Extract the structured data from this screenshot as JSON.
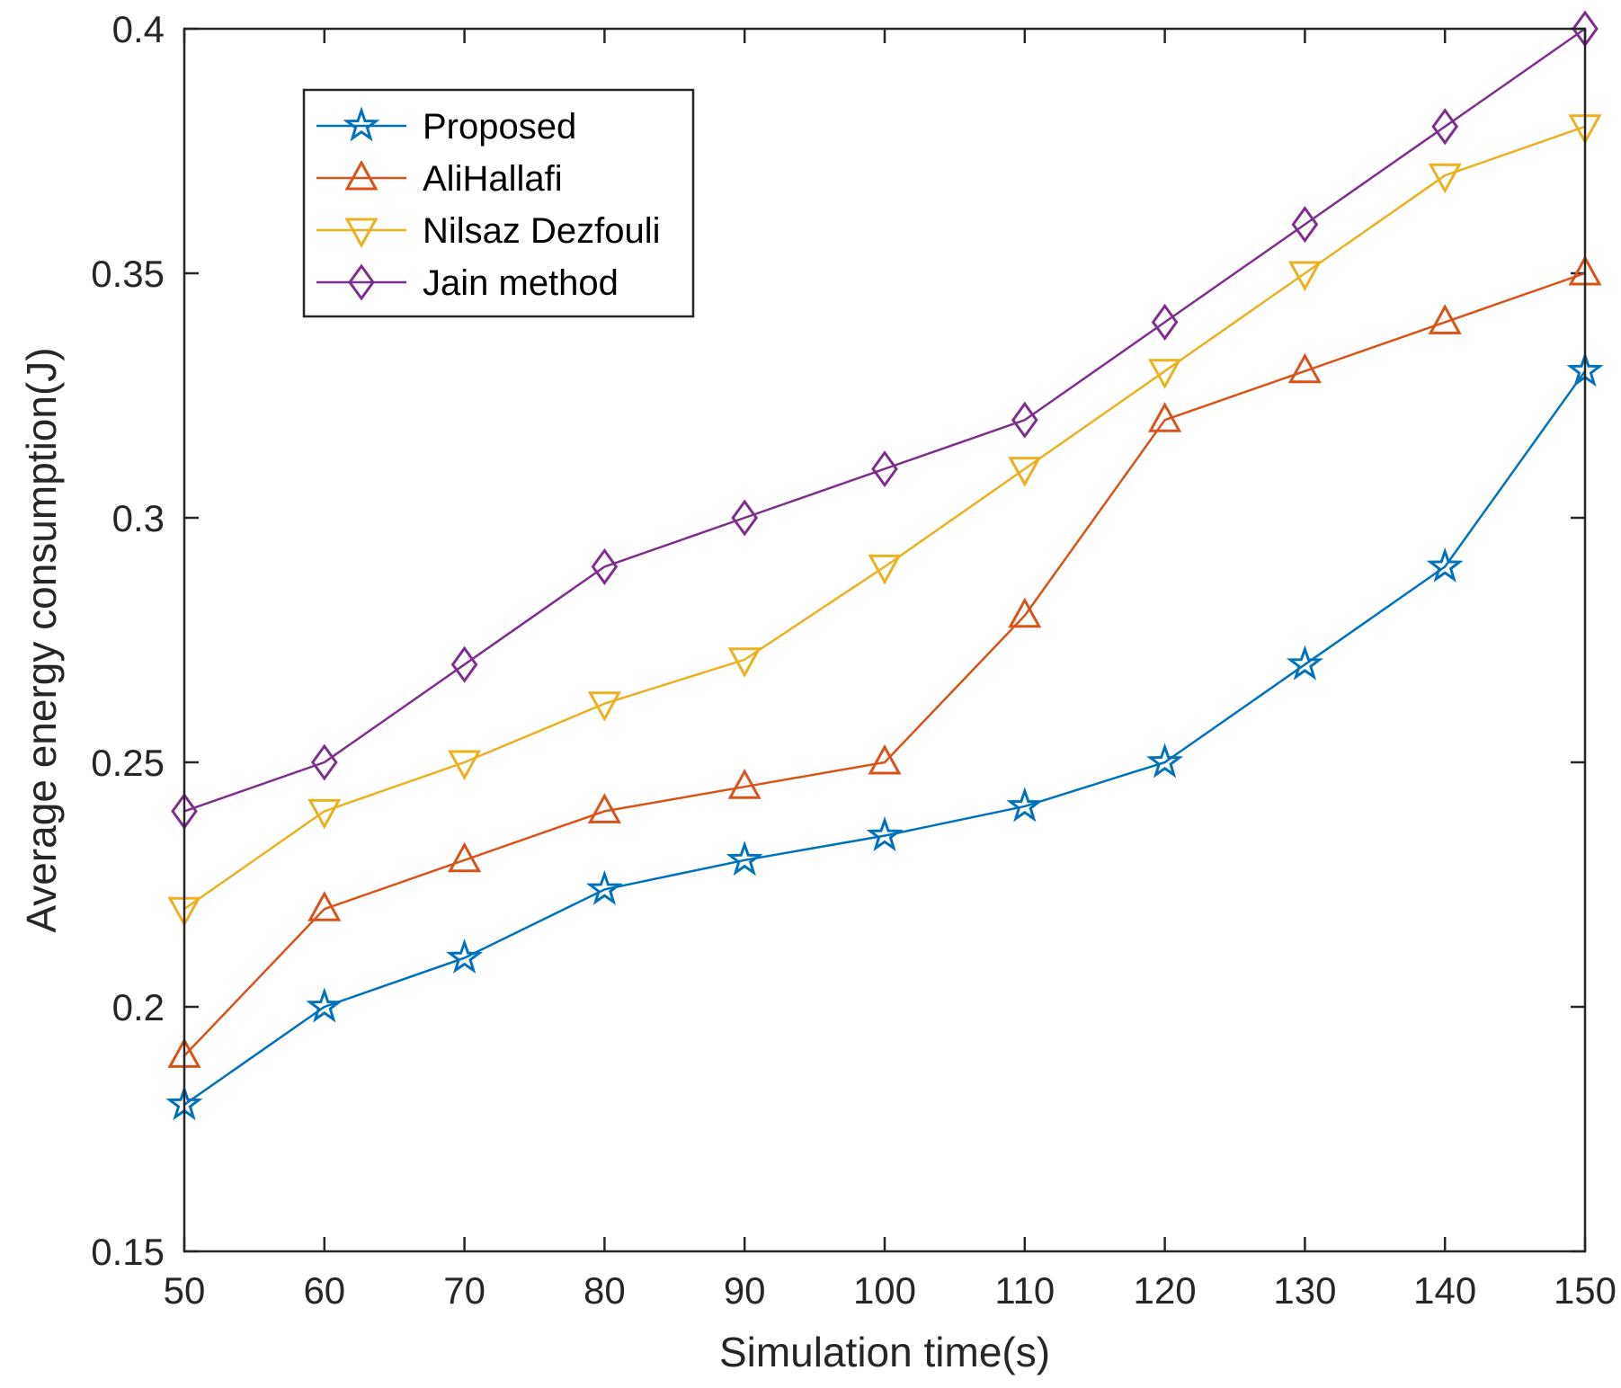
{
  "chart_data": {
    "type": "line",
    "title": "",
    "xlabel": "Simulation time(s)",
    "ylabel": "Average energy consumption(J)",
    "x": [
      50,
      60,
      70,
      80,
      90,
      100,
      110,
      120,
      130,
      140,
      150
    ],
    "xlim": [
      50,
      150
    ],
    "ylim": [
      0.15,
      0.4
    ],
    "xticks": [
      50,
      60,
      70,
      80,
      90,
      100,
      110,
      120,
      130,
      140,
      150
    ],
    "xtick_labels": [
      "50",
      "60",
      "70",
      "80",
      "90",
      "100",
      "110",
      "120",
      "130",
      "140",
      "150"
    ],
    "yticks": [
      0.15,
      0.2,
      0.25,
      0.3,
      0.35,
      0.4
    ],
    "ytick_labels": [
      "0.15",
      "0.2",
      "0.25",
      "0.3",
      "0.35",
      "0.4"
    ],
    "grid": false,
    "legend_position": "top-left",
    "series": [
      {
        "name": "Proposed",
        "color": "#0072BD",
        "marker": "star",
        "values": [
          0.18,
          0.2,
          0.21,
          0.224,
          0.23,
          0.235,
          0.241,
          0.25,
          0.27,
          0.29,
          0.33
        ]
      },
      {
        "name": "AliHallafi",
        "color": "#D95319",
        "marker": "triangle-up",
        "values": [
          0.19,
          0.22,
          0.23,
          0.24,
          0.245,
          0.25,
          0.28,
          0.32,
          0.33,
          0.34,
          0.35
        ]
      },
      {
        "name": "Nilsaz Dezfouli",
        "color": "#EDB120",
        "marker": "triangle-down",
        "values": [
          0.22,
          0.24,
          0.25,
          0.262,
          0.271,
          0.29,
          0.31,
          0.33,
          0.35,
          0.37,
          0.38
        ]
      },
      {
        "name": "Jain method",
        "color": "#7E2F8E",
        "marker": "diamond",
        "values": [
          0.24,
          0.25,
          0.27,
          0.29,
          0.3,
          0.31,
          0.32,
          0.34,
          0.36,
          0.38,
          0.4
        ]
      }
    ]
  }
}
